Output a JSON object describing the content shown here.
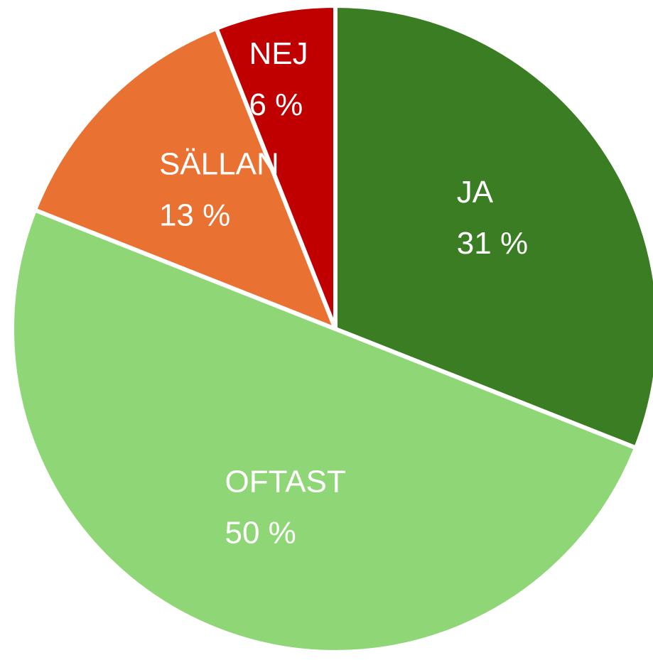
{
  "chart_data": {
    "type": "pie",
    "categories": [
      "JA",
      "OFTAST",
      "SÄLLAN",
      "NEJ"
    ],
    "values": [
      31,
      50,
      13,
      6
    ],
    "value_labels": [
      "31 %",
      "50 %",
      "13 %",
      "6 %"
    ],
    "colors": [
      "#3b7d23",
      "#8fd776",
      "#e97132",
      "#c00000"
    ]
  }
}
